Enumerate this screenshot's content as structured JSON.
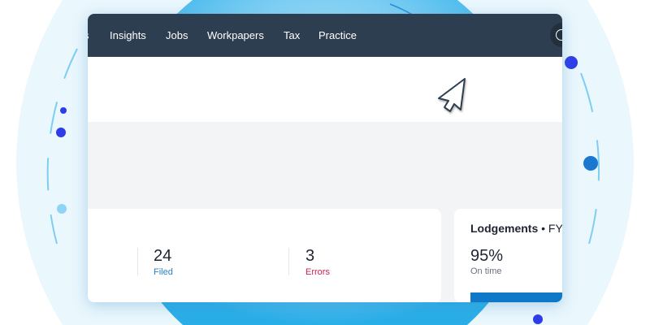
{
  "nav": {
    "items": [
      "s",
      "Insights",
      "Jobs",
      "Workpapers",
      "Tax",
      "Practice"
    ]
  },
  "stats": [
    {
      "value": "24",
      "label": "Filed",
      "color": "#2a7fc4"
    },
    {
      "value": "3",
      "label": "Errors",
      "color": "#c8254f"
    }
  ],
  "lodgements": {
    "title": "Lodgements",
    "suffix": "• FY",
    "value": "95%",
    "label": "On time",
    "bar_color": "#0f78c8"
  },
  "colors": {
    "nav": "#2d3e50",
    "accent_dot": "#2e3de8",
    "bg_circle": "#36b4ea"
  },
  "icons": [
    "cursor-arrow-icon",
    "profile-circle-icon"
  ]
}
